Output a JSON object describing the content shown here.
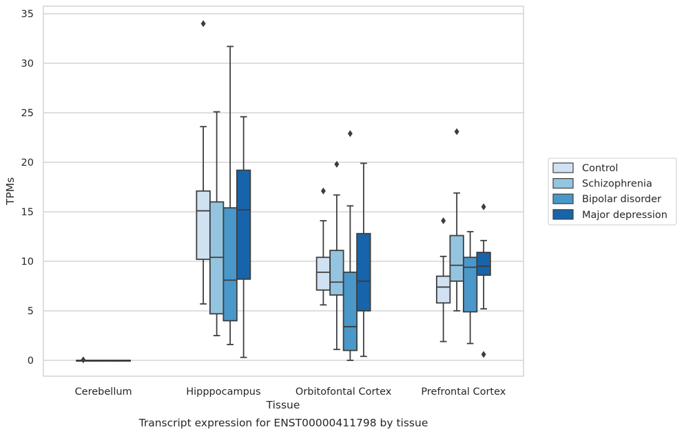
{
  "caption": "Transcript expression for ENST00000411798 by tissue",
  "chart_data": {
    "type": "box",
    "xlabel": "Tissue",
    "ylabel": "TPMs",
    "ylim": [
      -1.6,
      35.7
    ],
    "yticks": [
      0,
      5,
      10,
      15,
      20,
      25,
      30,
      35
    ],
    "grid": "horizontal",
    "legend_position": "right",
    "categories": [
      "Cerebellum",
      "Hipppocampus",
      "Orbitofontal Cortex",
      "Prefrontal Cortex"
    ],
    "series": [
      {
        "name": "Control",
        "color": "#d0e1f2",
        "boxes": [
          {
            "whislo": 0,
            "q1": 0,
            "med": 0,
            "q3": 0,
            "whishi": 0,
            "fliers": [
              0.05
            ]
          },
          {
            "whislo": 5.7,
            "q1": 10.2,
            "med": 15.1,
            "q3": 17.1,
            "whishi": 23.6,
            "fliers": [
              34.0
            ]
          },
          {
            "whislo": 5.6,
            "q1": 7.1,
            "med": 8.9,
            "q3": 10.4,
            "whishi": 14.1,
            "fliers": [
              17.1
            ]
          },
          {
            "whislo": 1.9,
            "q1": 5.8,
            "med": 7.4,
            "q3": 8.5,
            "whishi": 10.5,
            "fliers": [
              14.1
            ]
          }
        ]
      },
      {
        "name": "Schizophrenia",
        "color": "#94c4df",
        "boxes": [
          {
            "whislo": 0,
            "q1": 0,
            "med": 0,
            "q3": 0,
            "whishi": 0,
            "fliers": []
          },
          {
            "whislo": 2.5,
            "q1": 4.7,
            "med": 10.4,
            "q3": 16.0,
            "whishi": 25.1,
            "fliers": []
          },
          {
            "whislo": 1.1,
            "q1": 6.6,
            "med": 7.9,
            "q3": 11.1,
            "whishi": 16.7,
            "fliers": [
              19.8
            ]
          },
          {
            "whislo": 5.0,
            "q1": 8.0,
            "med": 9.6,
            "q3": 12.6,
            "whishi": 16.9,
            "fliers": [
              23.1
            ]
          }
        ]
      },
      {
        "name": "Bipolar disorder",
        "color": "#4a98c9",
        "boxes": [
          {
            "whislo": 0,
            "q1": 0,
            "med": 0,
            "q3": 0,
            "whishi": 0,
            "fliers": []
          },
          {
            "whislo": 1.6,
            "q1": 4.0,
            "med": 8.1,
            "q3": 15.4,
            "whishi": 31.7,
            "fliers": []
          },
          {
            "whislo": 0.0,
            "q1": 1.0,
            "med": 3.4,
            "q3": 8.9,
            "whishi": 15.6,
            "fliers": [
              22.9
            ]
          },
          {
            "whislo": 1.7,
            "q1": 4.9,
            "med": 9.4,
            "q3": 10.4,
            "whishi": 13.0,
            "fliers": []
          }
        ]
      },
      {
        "name": "Major depression",
        "color": "#1764ab",
        "boxes": [
          {
            "whislo": 0,
            "q1": 0,
            "med": 0,
            "q3": 0,
            "whishi": 0,
            "fliers": []
          },
          {
            "whislo": 0.3,
            "q1": 8.2,
            "med": 15.2,
            "q3": 19.2,
            "whishi": 24.6,
            "fliers": []
          },
          {
            "whislo": 0.4,
            "q1": 5.0,
            "med": 8.0,
            "q3": 12.8,
            "whishi": 19.9,
            "fliers": []
          },
          {
            "whislo": 5.2,
            "q1": 8.6,
            "med": 9.5,
            "q3": 10.9,
            "whishi": 12.1,
            "fliers": [
              15.5,
              0.6
            ]
          }
        ]
      }
    ]
  }
}
